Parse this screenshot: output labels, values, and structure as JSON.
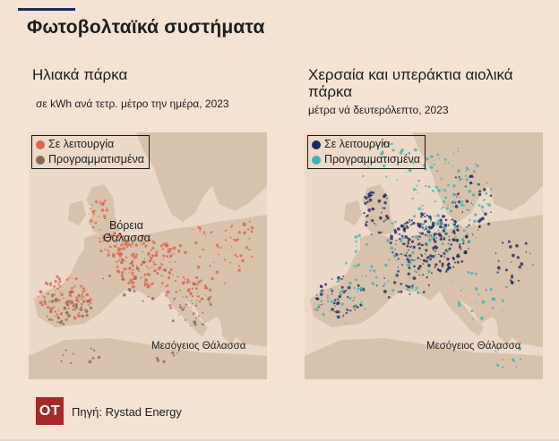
{
  "header": {
    "title": "Φωτοβολταϊκά συστήματα"
  },
  "colors": {
    "background": "#f4e2d3",
    "sea": "#ecd9c8",
    "land": "#d9c2ab",
    "solar_operating": "#d9654e",
    "solar_planned": "#8a6a52",
    "wind_operating": "#1e2860",
    "wind_planned": "#3fb3b0",
    "logo": "#a52a2a"
  },
  "left_panel": {
    "title": "Ηλιακά πάρκα",
    "subtitle": "σε kWh ανά τετρ. μέτρο την ημέρα, 2023",
    "legend": [
      {
        "label": "Σε λειτουργία",
        "color": "#d9654e"
      },
      {
        "label": "Προγραμματισμένα",
        "color": "#8a6a52"
      }
    ],
    "labels": {
      "north_sea_1": "Βόρεια",
      "north_sea_2": "Θάλασσα",
      "mediterranean": "Μεσόγειος Θάλασσα"
    }
  },
  "right_panel": {
    "title_line1": "Χερσαία και υπεράκτια αιολικά",
    "title_line2": "πάρκα",
    "subtitle": "μέτρα νά δευτερόλεπτο, 2023",
    "legend": [
      {
        "label": "Σε λειτουργία",
        "color": "#1e2860"
      },
      {
        "label": "Προγραμματισμένα",
        "color": "#3fb3b0"
      }
    ],
    "labels": {
      "mediterranean": "Μεσόγειος Θάλασσα"
    }
  },
  "footer": {
    "logo": "OT",
    "source": "Πηγή: Rystad Energy"
  }
}
